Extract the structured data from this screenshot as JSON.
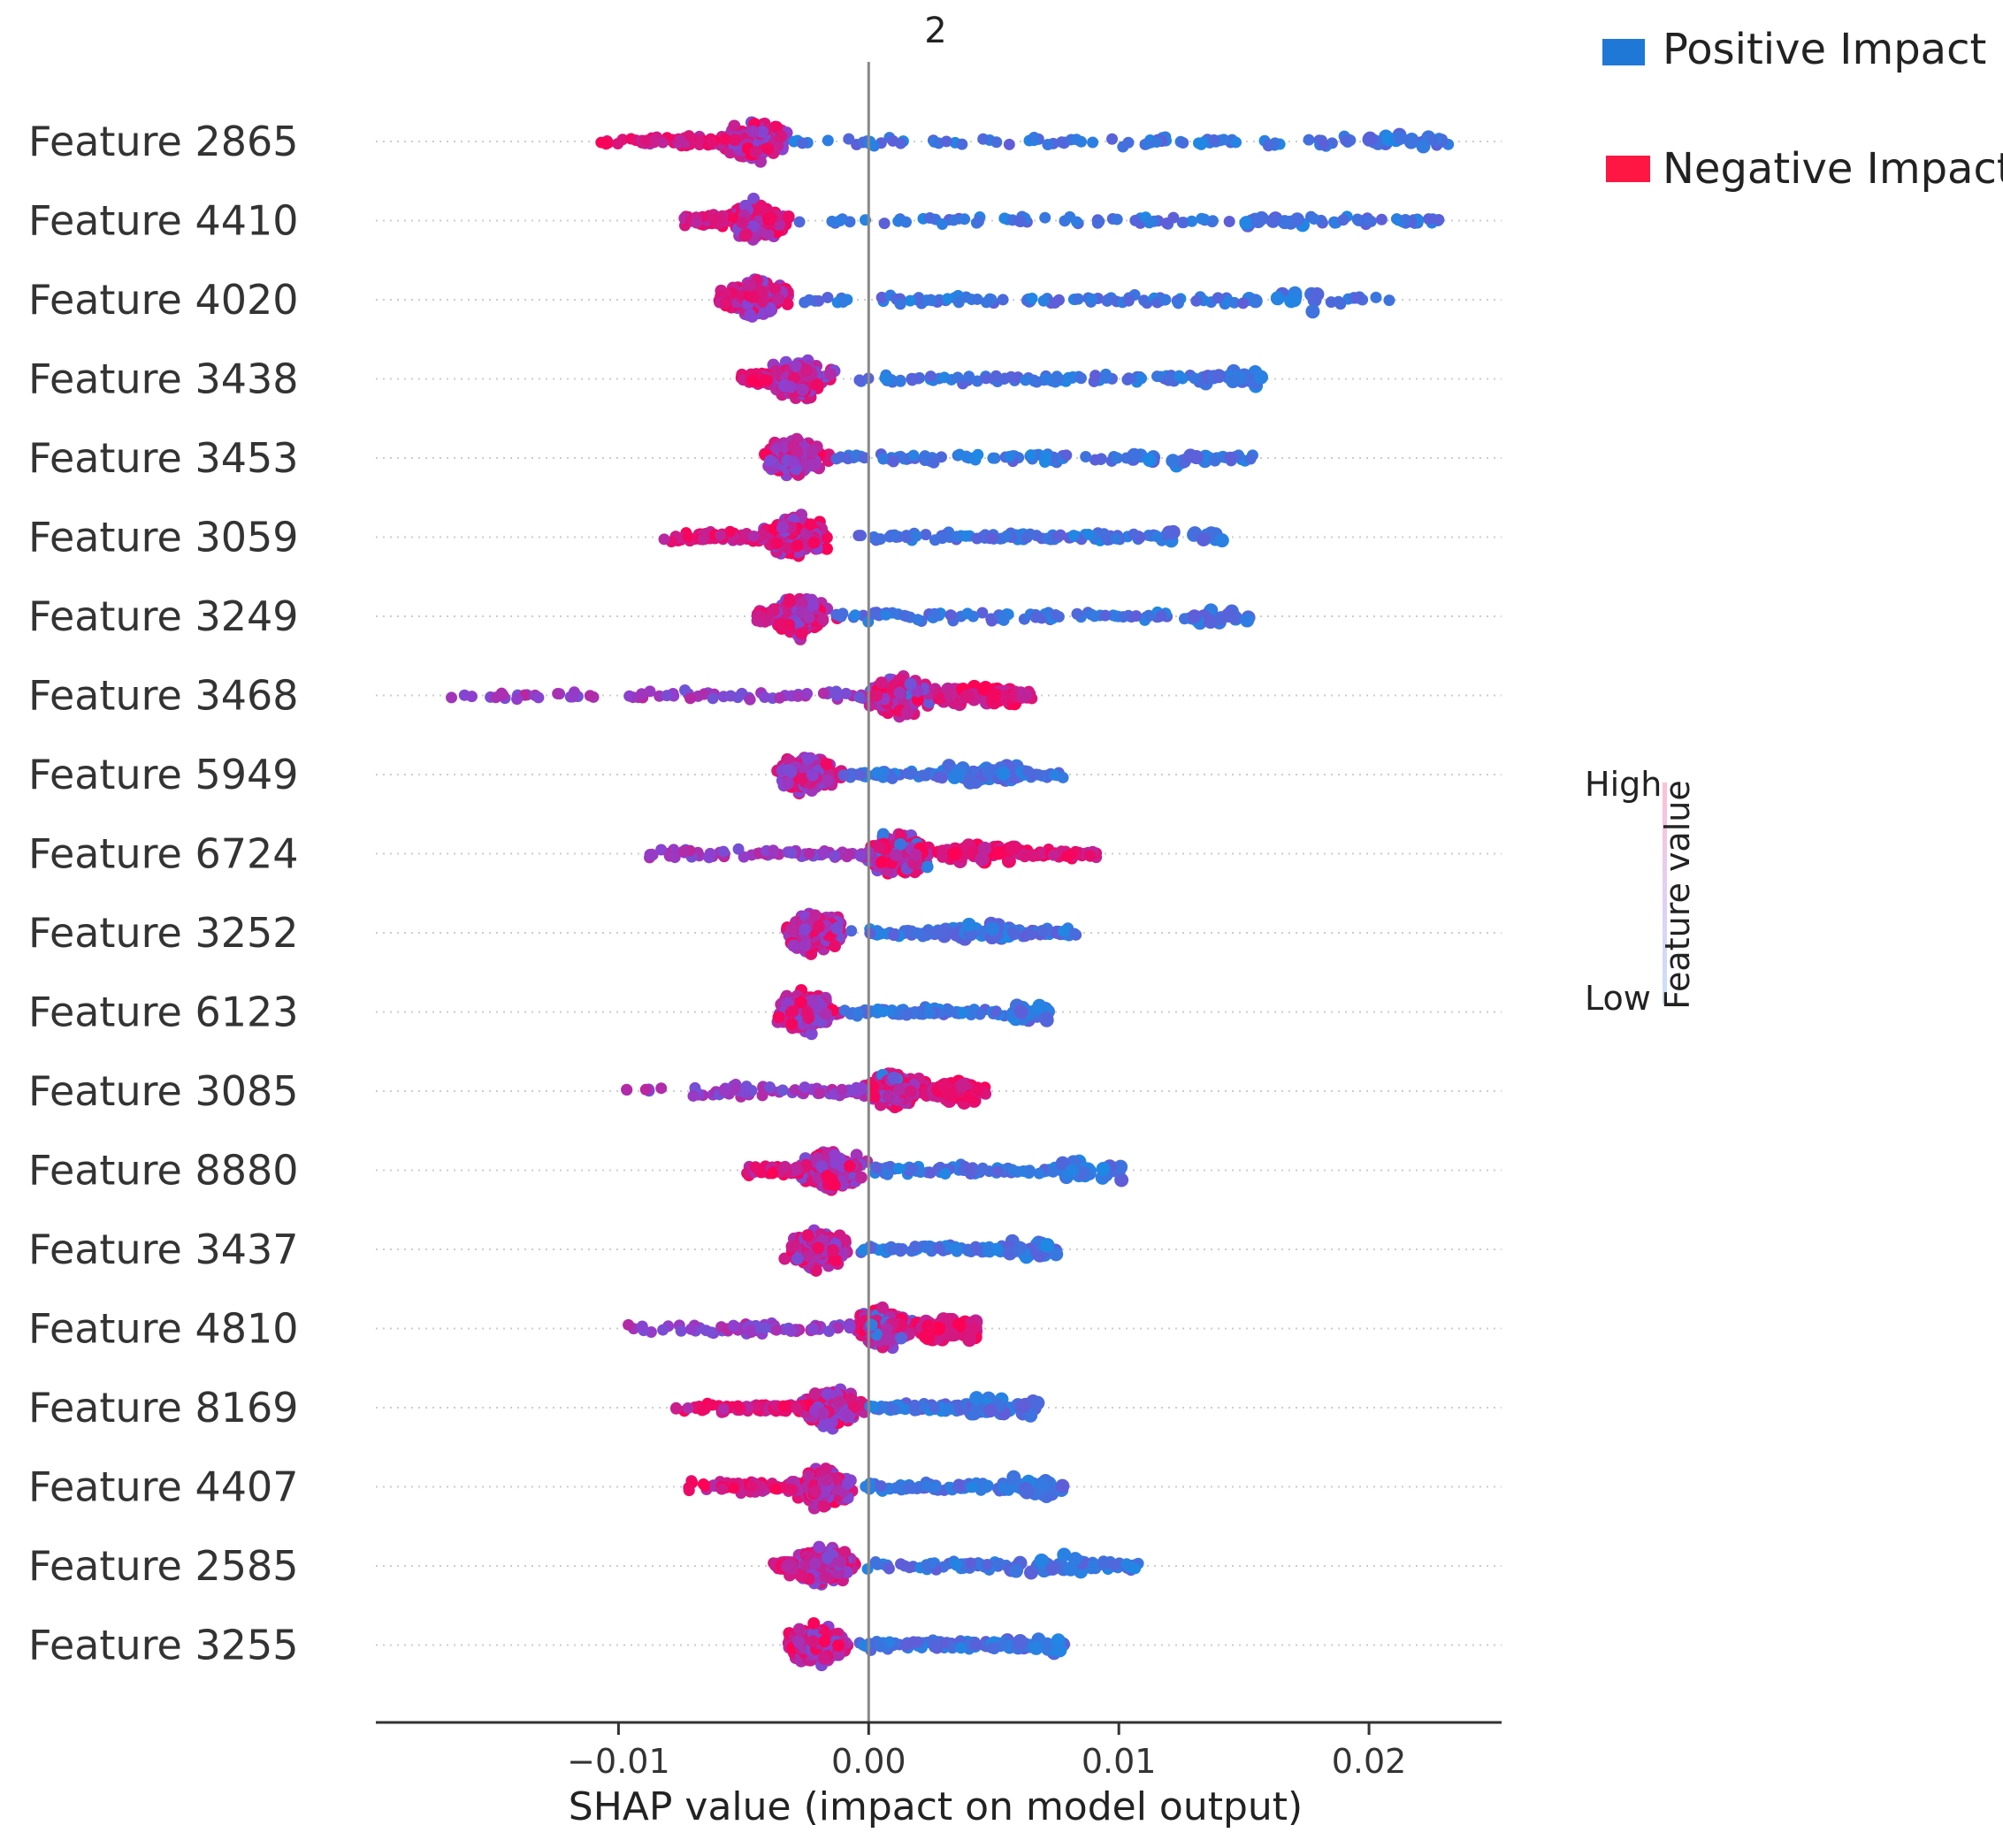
{
  "chart_data": {
    "type": "scatter",
    "subtype": "shap-beeswarm",
    "title": "2",
    "xlabel": "SHAP value (impact on model output)",
    "ylabel": "",
    "xlim": [
      -0.0197,
      0.0253
    ],
    "xticks": [
      -0.01,
      0.0,
      0.01,
      0.02
    ],
    "xtick_labels": [
      "−0.01",
      "0.00",
      "0.01",
      "0.02"
    ],
    "grid": false,
    "legend_position": "top-right",
    "legend": [
      {
        "label": "Positive Impact",
        "color": "#1f77d6"
      },
      {
        "label": "Negative Impact",
        "color": "#ff1744"
      }
    ],
    "colorbar": {
      "high_label": "High",
      "low_label": "Low",
      "title": "Feature value"
    },
    "features": [
      {
        "name": "Feature 2865",
        "neg_min": -0.011,
        "neg_peak": -0.0045,
        "pos_max": 0.0233,
        "pos_dense": 0.021
      },
      {
        "name": "Feature 4410",
        "neg_min": -0.0074,
        "neg_peak": -0.0045,
        "pos_max": 0.0228,
        "pos_dense": 0.016
      },
      {
        "name": "Feature 4020",
        "neg_min": -0.006,
        "neg_peak": -0.0045,
        "pos_max": 0.021,
        "pos_dense": 0.0165
      },
      {
        "name": "Feature 3438",
        "neg_min": -0.0051,
        "neg_peak": -0.0028,
        "pos_max": 0.0158,
        "pos_dense": 0.0148
      },
      {
        "name": "Feature 3453",
        "neg_min": -0.0042,
        "neg_peak": -0.003,
        "pos_max": 0.0155,
        "pos_dense": 0.012
      },
      {
        "name": "Feature 3059",
        "neg_min": -0.0086,
        "neg_peak": -0.003,
        "pos_max": 0.0143,
        "pos_dense": 0.0135
      },
      {
        "name": "Feature 3249",
        "neg_min": -0.0045,
        "neg_peak": -0.0028,
        "pos_max": 0.0153,
        "pos_dense": 0.0145
      },
      {
        "name": "Feature 3468",
        "neg_min": -0.0178,
        "neg_peak": 0.0012,
        "pos_max": 0.0066,
        "pos_dense": 0.0045
      },
      {
        "name": "Feature 5949",
        "neg_min": -0.0029,
        "neg_peak": -0.0025,
        "pos_max": 0.0078,
        "pos_dense": 0.0045
      },
      {
        "name": "Feature 6724",
        "neg_min": -0.0093,
        "neg_peak": 0.0012,
        "pos_max": 0.0091,
        "pos_dense": 0.0045
      },
      {
        "name": "Feature 3252",
        "neg_min": -0.0027,
        "neg_peak": -0.0022,
        "pos_max": 0.0083,
        "pos_dense": 0.0042
      },
      {
        "name": "Feature 6123",
        "neg_min": -0.0028,
        "neg_peak": -0.0025,
        "pos_max": 0.0073,
        "pos_dense": 0.007
      },
      {
        "name": "Feature 3085",
        "neg_min": -0.0099,
        "neg_peak": 0.001,
        "pos_max": 0.0047,
        "pos_dense": 0.0028
      },
      {
        "name": "Feature 8880",
        "neg_min": -0.0049,
        "neg_peak": -0.0015,
        "pos_max": 0.0102,
        "pos_dense": 0.0092
      },
      {
        "name": "Feature 3437",
        "neg_min": -0.0025,
        "neg_peak": -0.002,
        "pos_max": 0.0075,
        "pos_dense": 0.007
      },
      {
        "name": "Feature 4810",
        "neg_min": -0.0104,
        "neg_peak": 0.0006,
        "pos_max": 0.0043,
        "pos_dense": 0.003
      },
      {
        "name": "Feature 8169",
        "neg_min": -0.0079,
        "neg_peak": -0.0015,
        "pos_max": 0.0068,
        "pos_dense": 0.0055
      },
      {
        "name": "Feature 4407",
        "neg_min": -0.0073,
        "neg_peak": -0.0018,
        "pos_max": 0.0078,
        "pos_dense": 0.0072
      },
      {
        "name": "Feature 2585",
        "neg_min": -0.0039,
        "neg_peak": -0.0018,
        "pos_max": 0.0109,
        "pos_dense": 0.007
      },
      {
        "name": "Feature 3255",
        "neg_min": -0.0025,
        "neg_peak": -0.002,
        "pos_max": 0.0078,
        "pos_dense": 0.007
      }
    ]
  }
}
